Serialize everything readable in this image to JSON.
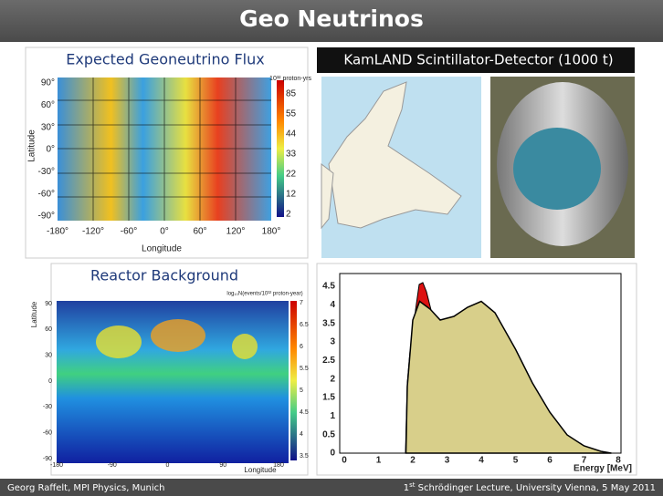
{
  "header": {
    "title": "Geo Neutrinos"
  },
  "panels": [
    {
      "caption": "Expected Geoneutrino Flux",
      "y_axis": "Latitude",
      "x_axis": "Longitude",
      "yticks": [
        "90°",
        "60°",
        "30°",
        "0°",
        "-30°",
        "-60°",
        "-90°"
      ],
      "xticks": [
        "-180°",
        "-120°",
        "-60°",
        "0°",
        "60°",
        "120°",
        "180°"
      ],
      "colorbar_unit": "10³² proton-yrs",
      "colorbar": [
        "85",
        "55",
        "44",
        "33",
        "22",
        "12",
        "2"
      ]
    },
    {
      "caption": "KamLAND Scintillator-Detector (1000 t)"
    },
    {
      "caption": "Reactor Background",
      "y_axis": "Latitude",
      "x_axis": "Longitude",
      "colorbar_title": "log₁₀N(events/10³² proton-year)",
      "yticks": [
        "90",
        "60",
        "30",
        "0",
        "-30",
        "-60",
        "-90"
      ],
      "xticks": [
        "-180",
        "-90",
        "0",
        "90",
        "180"
      ],
      "colorbar": [
        "7",
        "6.5",
        "6",
        "5.5",
        "5",
        "4.5",
        "4",
        "3.5"
      ]
    },
    {
      "x_axis": "Energy [MeV]",
      "yticks": [
        "4.5",
        "4",
        "3.5",
        "3",
        "2.5",
        "2",
        "1.5",
        "1",
        "0.5",
        "0"
      ],
      "xticks": [
        "0",
        "1",
        "2",
        "3",
        "4",
        "5",
        "6",
        "7",
        "8"
      ]
    }
  ],
  "footer": {
    "left": "Georg Raffelt, MPI Physics, Munich",
    "right_number": "1",
    "right_sup": "st",
    "right_text": " Schrödinger Lecture, University Vienna, 5 May 2011"
  }
}
